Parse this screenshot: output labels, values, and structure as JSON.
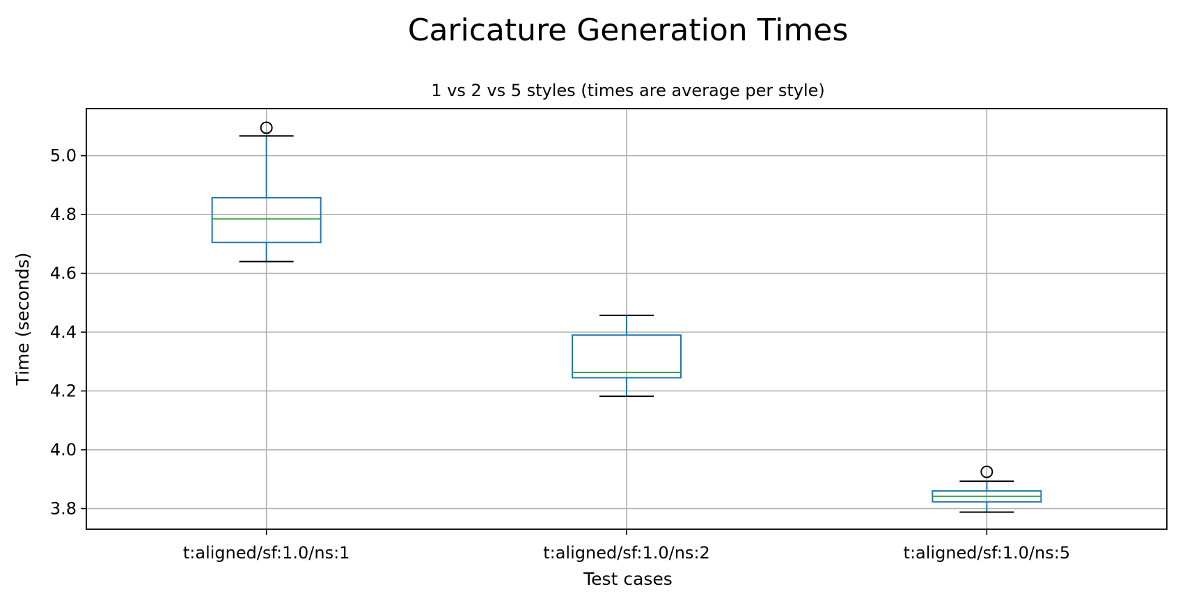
{
  "chart_data": {
    "type": "box",
    "title": "Caricature Generation Times",
    "subtitle": "1 vs 2 vs 5 styles (times are average per style)",
    "xlabel": "Test cases",
    "ylabel": "Time (seconds)",
    "ylim": [
      3.73,
      5.16
    ],
    "yticks": [
      3.8,
      4.0,
      4.2,
      4.4,
      4.6,
      4.8,
      5.0
    ],
    "ytick_labels": [
      "3.8",
      "4.0",
      "4.2",
      "4.4",
      "4.6",
      "4.8",
      "5.0"
    ],
    "grid": true,
    "categories": [
      "t:aligned/sf:1.0/ns:1",
      "t:aligned/sf:1.0/ns:2",
      "t:aligned/sf:1.0/ns:5"
    ],
    "boxes": [
      {
        "whisker_low": 4.64,
        "q1": 4.705,
        "median": 4.785,
        "q3": 4.857,
        "whisker_high": 5.067,
        "outliers": [
          5.095
        ]
      },
      {
        "whisker_low": 4.182,
        "q1": 4.245,
        "median": 4.263,
        "q3": 4.39,
        "whisker_high": 4.457,
        "outliers": []
      },
      {
        "whisker_low": 3.788,
        "q1": 3.823,
        "median": 3.842,
        "q3": 3.86,
        "whisker_high": 3.893,
        "outliers": [
          3.925
        ]
      }
    ],
    "colors": {
      "box": "#1f77b4",
      "median": "#2ca02c",
      "whisker_cap": "#000000",
      "grid": "#b0b0b0"
    }
  }
}
